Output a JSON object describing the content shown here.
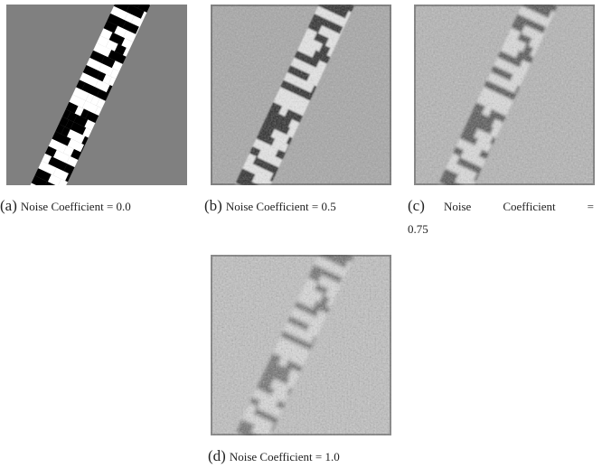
{
  "panels": [
    {
      "label": "(a)",
      "caption": "Noise Coefficient = 0.0"
    },
    {
      "label": "(b)",
      "caption": "Noise Coefficient = 0.5"
    },
    {
      "label": "(c)",
      "caption": "Noise Coefficient = 0.75"
    },
    {
      "label": "(d)",
      "caption": "Noise Coefficient = 1.0"
    }
  ]
}
